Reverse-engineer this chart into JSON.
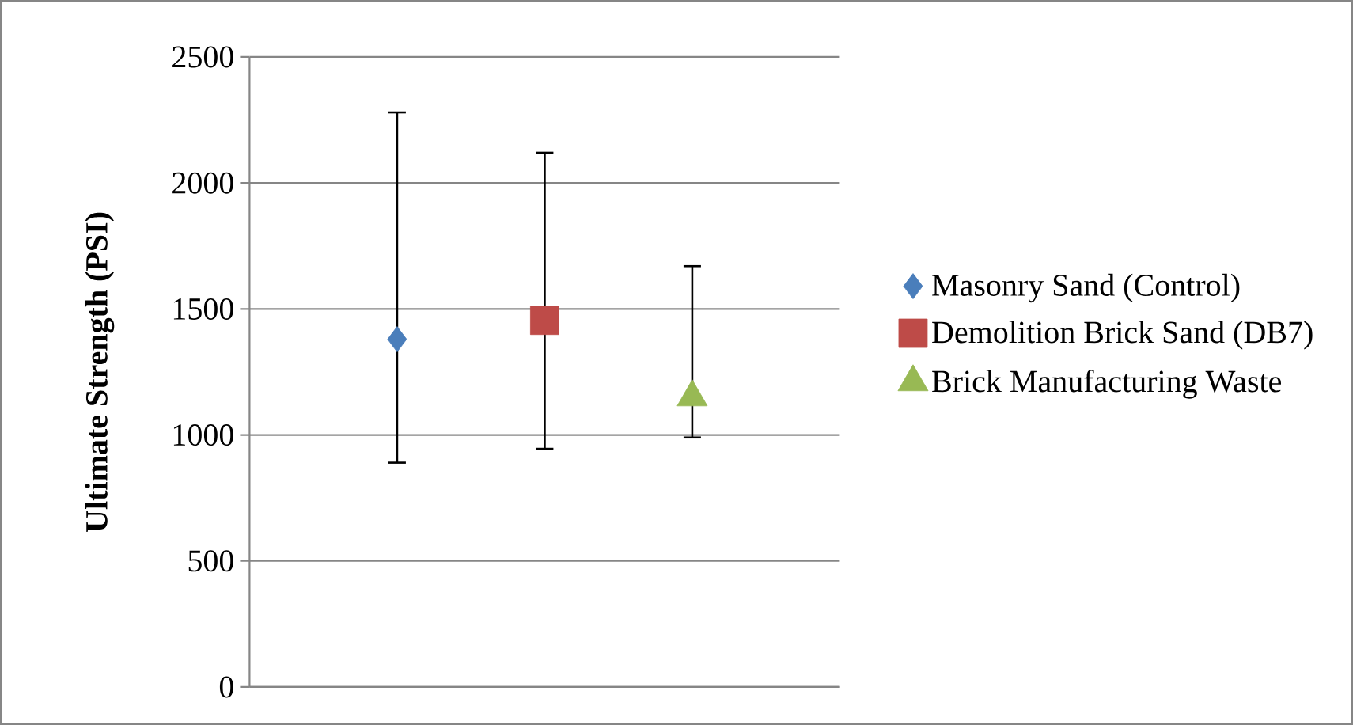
{
  "chart_data": {
    "type": "scatter",
    "ylabel": "Ultimate Strength (PSI)",
    "categories": [
      null,
      null,
      null
    ],
    "series": [
      {
        "name": "Masonry Sand (Control)",
        "color": "#4a7ebb",
        "marker": "diamond",
        "values": [
          1380,
          null,
          null
        ],
        "errors": [
          [
            890,
            2280
          ],
          null,
          null
        ]
      },
      {
        "name": "Demolition Brick Sand (DB7)",
        "color": "#be4b48",
        "marker": "square",
        "values": [
          null,
          1455,
          null
        ],
        "errors": [
          null,
          [
            945,
            2120
          ],
          null
        ]
      },
      {
        "name": "Brick Manufacturing Waste",
        "color": "#98b954",
        "marker": "triangle",
        "values": [
          null,
          null,
          1150
        ],
        "errors": [
          null,
          null,
          [
            990,
            1670
          ]
        ]
      }
    ],
    "ylim": [
      0,
      2500
    ],
    "yticks": [
      0,
      500,
      1000,
      1500,
      2000,
      2500
    ],
    "grid": "y",
    "legend": "right",
    "tick_labels": "y"
  }
}
